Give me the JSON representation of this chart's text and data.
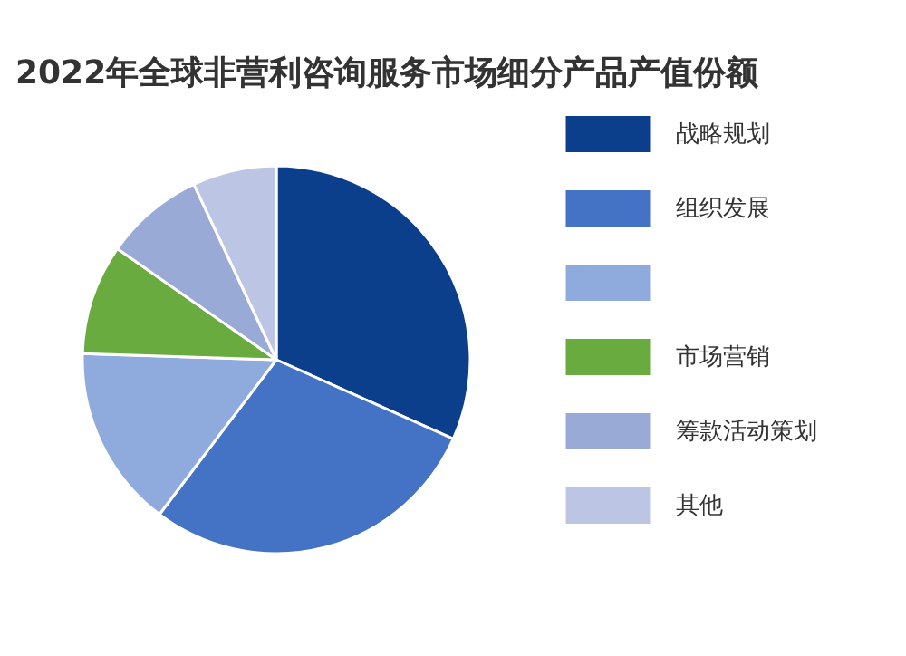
{
  "chart_data": {
    "type": "pie",
    "title": "2022年全球非营利咨询服务市场细分产品产值份额",
    "categories": [
      "战略规划",
      "组织发展",
      null,
      "市场营销",
      "筹款活动策划",
      "其他"
    ],
    "values": [
      31.7,
      28.6,
      15.2,
      9.2,
      8.3,
      7.0
    ],
    "colors": [
      "#0b3f8c",
      "#4472c4",
      "#8faadc",
      "#6aab3f",
      "#9aaad6",
      "#bcc6e4"
    ],
    "legend": "right"
  }
}
